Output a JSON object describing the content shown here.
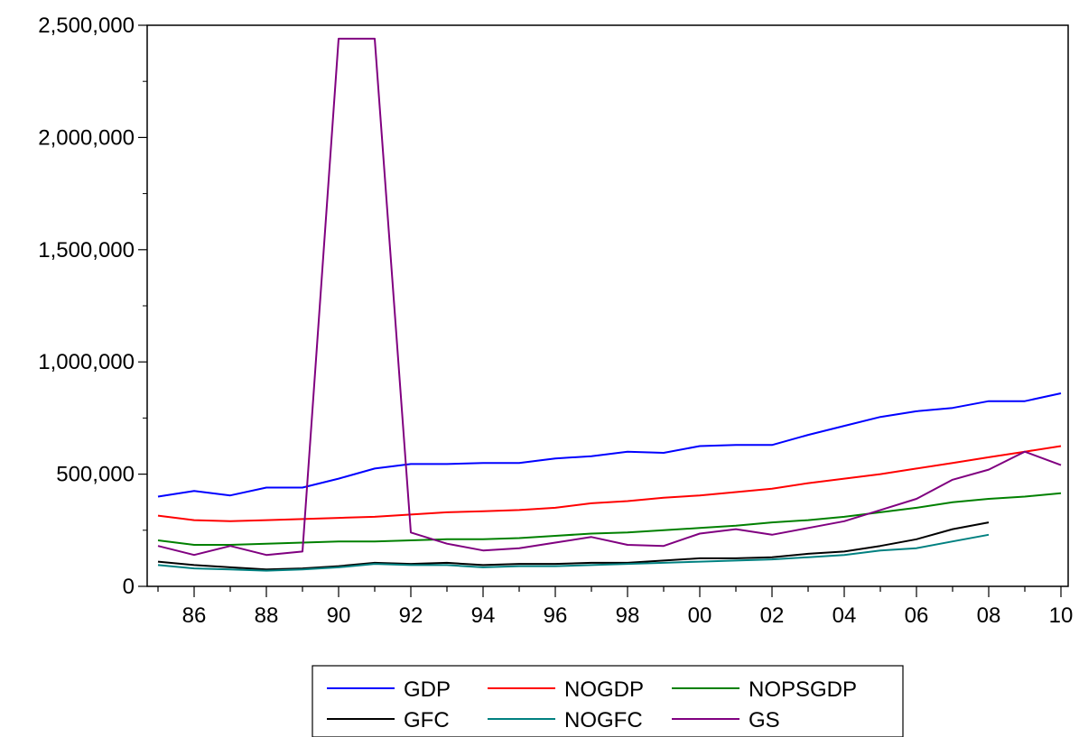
{
  "chart_data": {
    "type": "line",
    "title": "",
    "xlabel": "",
    "ylabel": "",
    "x": [
      1985,
      1986,
      1987,
      1988,
      1989,
      1990,
      1991,
      1992,
      1993,
      1994,
      1995,
      1996,
      1997,
      1998,
      1999,
      2000,
      2001,
      2002,
      2003,
      2004,
      2005,
      2006,
      2007,
      2008,
      2009,
      2010
    ],
    "xlim": [
      1984.7,
      2010.2
    ],
    "ylim": [
      0,
      2500000
    ],
    "y_ticks": [
      0,
      500000,
      1000000,
      1500000,
      2000000,
      2500000
    ],
    "y_tick_labels": [
      "0",
      "500,000",
      "1,000,000",
      "1,500,000",
      "2,000,000",
      "2,500,000"
    ],
    "x_ticks": [
      1986,
      1988,
      1990,
      1992,
      1994,
      1996,
      1998,
      2000,
      2002,
      2004,
      2006,
      2008,
      2010
    ],
    "x_tick_labels": [
      "86",
      "88",
      "90",
      "92",
      "94",
      "96",
      "98",
      "00",
      "02",
      "04",
      "06",
      "08",
      "10"
    ],
    "grid": false,
    "legend_position": "bottom-center",
    "series": [
      {
        "name": "GDP",
        "color": "#0000ff",
        "values": [
          400000,
          425000,
          405000,
          440000,
          440000,
          480000,
          525000,
          545000,
          545000,
          550000,
          550000,
          570000,
          580000,
          600000,
          595000,
          625000,
          630000,
          630000,
          675000,
          715000,
          755000,
          780000,
          795000,
          825000,
          825000,
          860000
        ]
      },
      {
        "name": "NOGDP",
        "color": "#ff0000",
        "values": [
          315000,
          295000,
          290000,
          295000,
          300000,
          305000,
          310000,
          320000,
          330000,
          335000,
          340000,
          350000,
          370000,
          380000,
          395000,
          405000,
          420000,
          435000,
          460000,
          480000,
          500000,
          525000,
          550000,
          575000,
          600000,
          625000
        ]
      },
      {
        "name": "NOPSGDP",
        "color": "#008000",
        "values": [
          205000,
          185000,
          185000,
          190000,
          195000,
          200000,
          200000,
          205000,
          210000,
          210000,
          215000,
          225000,
          235000,
          240000,
          250000,
          260000,
          270000,
          285000,
          295000,
          310000,
          330000,
          350000,
          375000,
          390000,
          400000,
          415000
        ]
      },
      {
        "name": "GFC",
        "color": "#000000",
        "values": [
          110000,
          95000,
          85000,
          75000,
          80000,
          90000,
          105000,
          100000,
          105000,
          95000,
          100000,
          100000,
          105000,
          105000,
          115000,
          125000,
          125000,
          130000,
          145000,
          155000,
          180000,
          210000,
          255000,
          285000,
          null,
          null
        ]
      },
      {
        "name": "NOGFC",
        "color": "#008080",
        "values": [
          95000,
          80000,
          75000,
          70000,
          75000,
          85000,
          100000,
          95000,
          95000,
          85000,
          90000,
          90000,
          95000,
          100000,
          105000,
          110000,
          115000,
          120000,
          130000,
          140000,
          160000,
          170000,
          200000,
          230000,
          null,
          null
        ]
      },
      {
        "name": "GS",
        "color": "#800080",
        "values": [
          180000,
          140000,
          180000,
          140000,
          155000,
          2440000,
          2440000,
          240000,
          190000,
          160000,
          170000,
          195000,
          220000,
          185000,
          180000,
          235000,
          255000,
          230000,
          260000,
          290000,
          340000,
          390000,
          475000,
          520000,
          600000,
          540000
        ]
      }
    ]
  }
}
